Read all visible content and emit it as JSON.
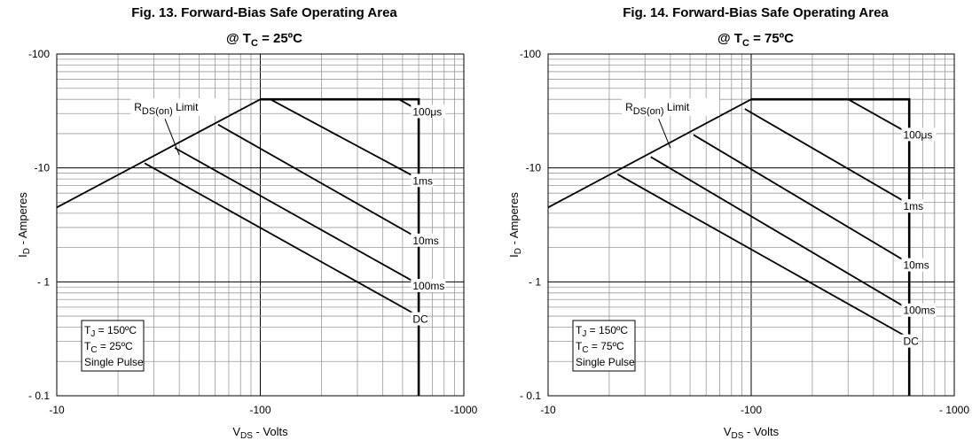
{
  "chart_data": [
    {
      "type": "line",
      "scale": "log-log",
      "title": "Fig. 13. Forward-Bias Safe Operating Area",
      "subtitle": {
        "prefix": "@ T",
        "sub": "C",
        "suffix": " = 25ºC"
      },
      "xlabel": {
        "main": "V",
        "sub": "DS",
        "rest": " - Volts"
      },
      "ylabel": {
        "main": "I",
        "sub": "D",
        "rest": " - Amperes"
      },
      "xlim": [
        10,
        1000
      ],
      "ylim": [
        0.1,
        100
      ],
      "x_ticks": [
        {
          "value": 10,
          "label": "-10"
        },
        {
          "value": 100,
          "label": "-100"
        },
        {
          "value": 1000,
          "label": "-1000"
        }
      ],
      "y_ticks": [
        {
          "value": 100,
          "label": "-100"
        },
        {
          "value": 10,
          "label": "-10"
        },
        {
          "value": 1,
          "label": "- 1"
        },
        {
          "value": 0.1,
          "label": "- 0.1"
        }
      ],
      "grid": true,
      "series": [
        {
          "name": "RDS(on) Limit",
          "points": [
            [
              10,
              4.5
            ],
            [
              100,
              40
            ]
          ]
        },
        {
          "name": "100μs",
          "points": [
            [
              100,
              40
            ],
            [
              600,
              40
            ],
            [
              600,
              0.1
            ]
          ]
        },
        {
          "name": "",
          "points": [
            [
              480,
              40
            ],
            [
              600,
              32
            ]
          ]
        },
        {
          "name": "1ms",
          "points": [
            [
              112,
              40
            ],
            [
              600,
              8
            ]
          ]
        },
        {
          "name": "10ms",
          "points": [
            [
              62,
              24
            ],
            [
              600,
              2.4
            ]
          ]
        },
        {
          "name": "100ms",
          "points": [
            [
              38,
              15
            ],
            [
              600,
              0.95
            ]
          ]
        },
        {
          "name": "DC",
          "points": [
            [
              27,
              11
            ],
            [
              600,
              0.5
            ]
          ]
        }
      ],
      "line_labels": [
        {
          "text": "100μs",
          "x": 620,
          "y": 31
        },
        {
          "text": "1ms",
          "x": 620,
          "y": 7.7
        },
        {
          "text": "10ms",
          "x": 620,
          "y": 2.3
        },
        {
          "text": "100ms",
          "x": 620,
          "y": 0.92
        },
        {
          "text": "DC",
          "x": 620,
          "y": 0.47
        }
      ],
      "rds_label": {
        "main": "R",
        "sub": "DS(on)",
        "rest": " Limit",
        "x": 24,
        "y": 33
      },
      "rds_leader": [
        [
          34,
          27
        ],
        [
          40,
          13
        ]
      ],
      "conditions": [
        {
          "main": "T",
          "sub": "J",
          "rest": " = 150ºC"
        },
        {
          "main": "T",
          "sub": "C",
          "rest": " = 25ºC"
        },
        {
          "main": "Single Pulse",
          "sub": "",
          "rest": ""
        }
      ]
    },
    {
      "type": "line",
      "scale": "log-log",
      "title": "Fig. 14. Forward-Bias Safe Operating Area",
      "subtitle": {
        "prefix": "@ T",
        "sub": "C",
        "suffix": " = 75ºC"
      },
      "xlabel": {
        "main": "V",
        "sub": "DS",
        "rest": " - Volts"
      },
      "ylabel": {
        "main": "I",
        "sub": "D",
        "rest": " - Amperes"
      },
      "xlim": [
        10,
        1000
      ],
      "ylim": [
        0.1,
        100
      ],
      "x_ticks": [
        {
          "value": 10,
          "label": "-10"
        },
        {
          "value": 100,
          "label": "-100"
        },
        {
          "value": 1000,
          "label": "- 1000"
        }
      ],
      "y_ticks": [
        {
          "value": 100,
          "label": "-100"
        },
        {
          "value": 10,
          "label": "-10"
        },
        {
          "value": 1,
          "label": "- 1"
        },
        {
          "value": 0.1,
          "label": "- 0.1"
        }
      ],
      "grid": true,
      "series": [
        {
          "name": "RDS(on) Limit",
          "points": [
            [
              10,
              4.5
            ],
            [
              100,
              40
            ]
          ]
        },
        {
          "name": "100μs",
          "points": [
            [
              100,
              40
            ],
            [
              600,
              40
            ],
            [
              600,
              0.1
            ]
          ]
        },
        {
          "name": "",
          "points": [
            [
              300,
              40
            ],
            [
              600,
              20
            ]
          ]
        },
        {
          "name": "1ms",
          "points": [
            [
              93,
              33
            ],
            [
              600,
              4.8
            ]
          ]
        },
        {
          "name": "10ms",
          "points": [
            [
              52,
              19.5
            ],
            [
              600,
              1.45
            ]
          ]
        },
        {
          "name": "100ms",
          "points": [
            [
              32,
              12.5
            ],
            [
              600,
              0.57
            ]
          ]
        },
        {
          "name": "DC",
          "points": [
            [
              22,
              8.8
            ],
            [
              600,
              0.32
            ]
          ]
        }
      ],
      "line_labels": [
        {
          "text": "100μs",
          "x": 620,
          "y": 19.5
        },
        {
          "text": "1ms",
          "x": 620,
          "y": 4.6
        },
        {
          "text": "10ms",
          "x": 620,
          "y": 1.4
        },
        {
          "text": "100ms",
          "x": 620,
          "y": 0.56
        },
        {
          "text": "DC",
          "x": 620,
          "y": 0.3
        }
      ],
      "rds_label": {
        "main": "R",
        "sub": "DS(on)",
        "rest": " Limit",
        "x": 24,
        "y": 33
      },
      "rds_leader": [
        [
          35,
          27
        ],
        [
          40,
          15
        ]
      ],
      "conditions": [
        {
          "main": "T",
          "sub": "J",
          "rest": " = 150ºC"
        },
        {
          "main": "T",
          "sub": "C",
          "rest": " = 75ºC"
        },
        {
          "main": "Single Pulse",
          "sub": "",
          "rest": ""
        }
      ]
    }
  ]
}
